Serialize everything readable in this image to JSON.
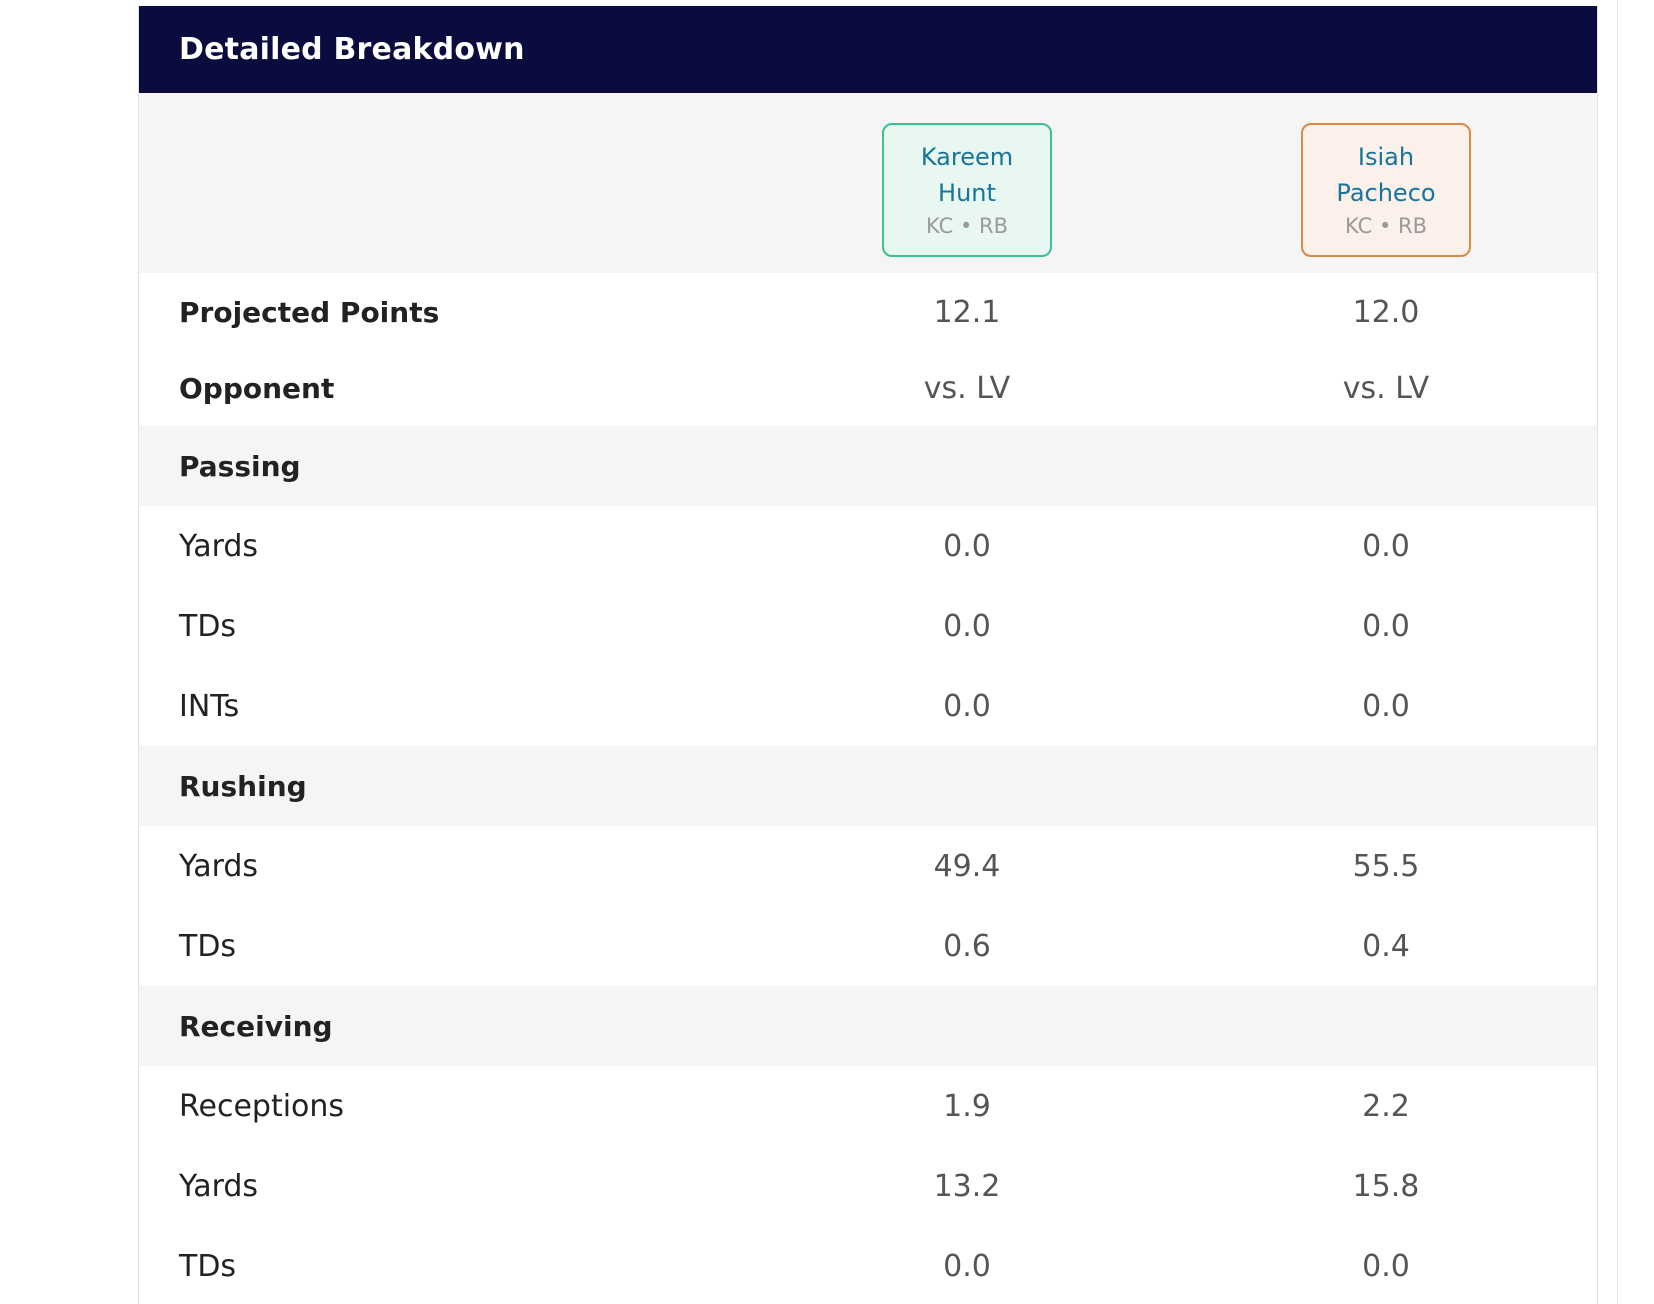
{
  "header": {
    "title": "Detailed Breakdown"
  },
  "players": [
    {
      "name": "Kareem\nHunt",
      "meta": "KC • RB"
    },
    {
      "name": "Isiah\nPacheco",
      "meta": "KC • RB"
    }
  ],
  "rows": {
    "projected_points": {
      "label": "Projected Points",
      "v1": "12.1",
      "v2": "12.0"
    },
    "opponent": {
      "label": "Opponent",
      "v1": "vs. LV",
      "v2": "vs. LV"
    },
    "passing": {
      "label": "Passing"
    },
    "passing_yards": {
      "label": "Yards",
      "v1": "0.0",
      "v2": "0.0"
    },
    "passing_tds": {
      "label": "TDs",
      "v1": "0.0",
      "v2": "0.0"
    },
    "passing_ints": {
      "label": "INTs",
      "v1": "0.0",
      "v2": "0.0"
    },
    "rushing": {
      "label": "Rushing"
    },
    "rushing_yards": {
      "label": "Yards",
      "v1": "49.4",
      "v2": "55.5"
    },
    "rushing_tds": {
      "label": "TDs",
      "v1": "0.6",
      "v2": "0.4"
    },
    "receiving": {
      "label": "Receiving"
    },
    "receiving_receptions": {
      "label": "Receptions",
      "v1": "1.9",
      "v2": "2.2"
    },
    "receiving_yards": {
      "label": "Yards",
      "v1": "13.2",
      "v2": "15.8"
    },
    "receiving_tds": {
      "label": "TDs",
      "v1": "0.0",
      "v2": "0.0"
    }
  },
  "colors": {
    "header_bg": "#0a0c3d",
    "player1_border": "#3cc08e",
    "player2_border": "#d98a45",
    "player_name": "#17759b"
  }
}
